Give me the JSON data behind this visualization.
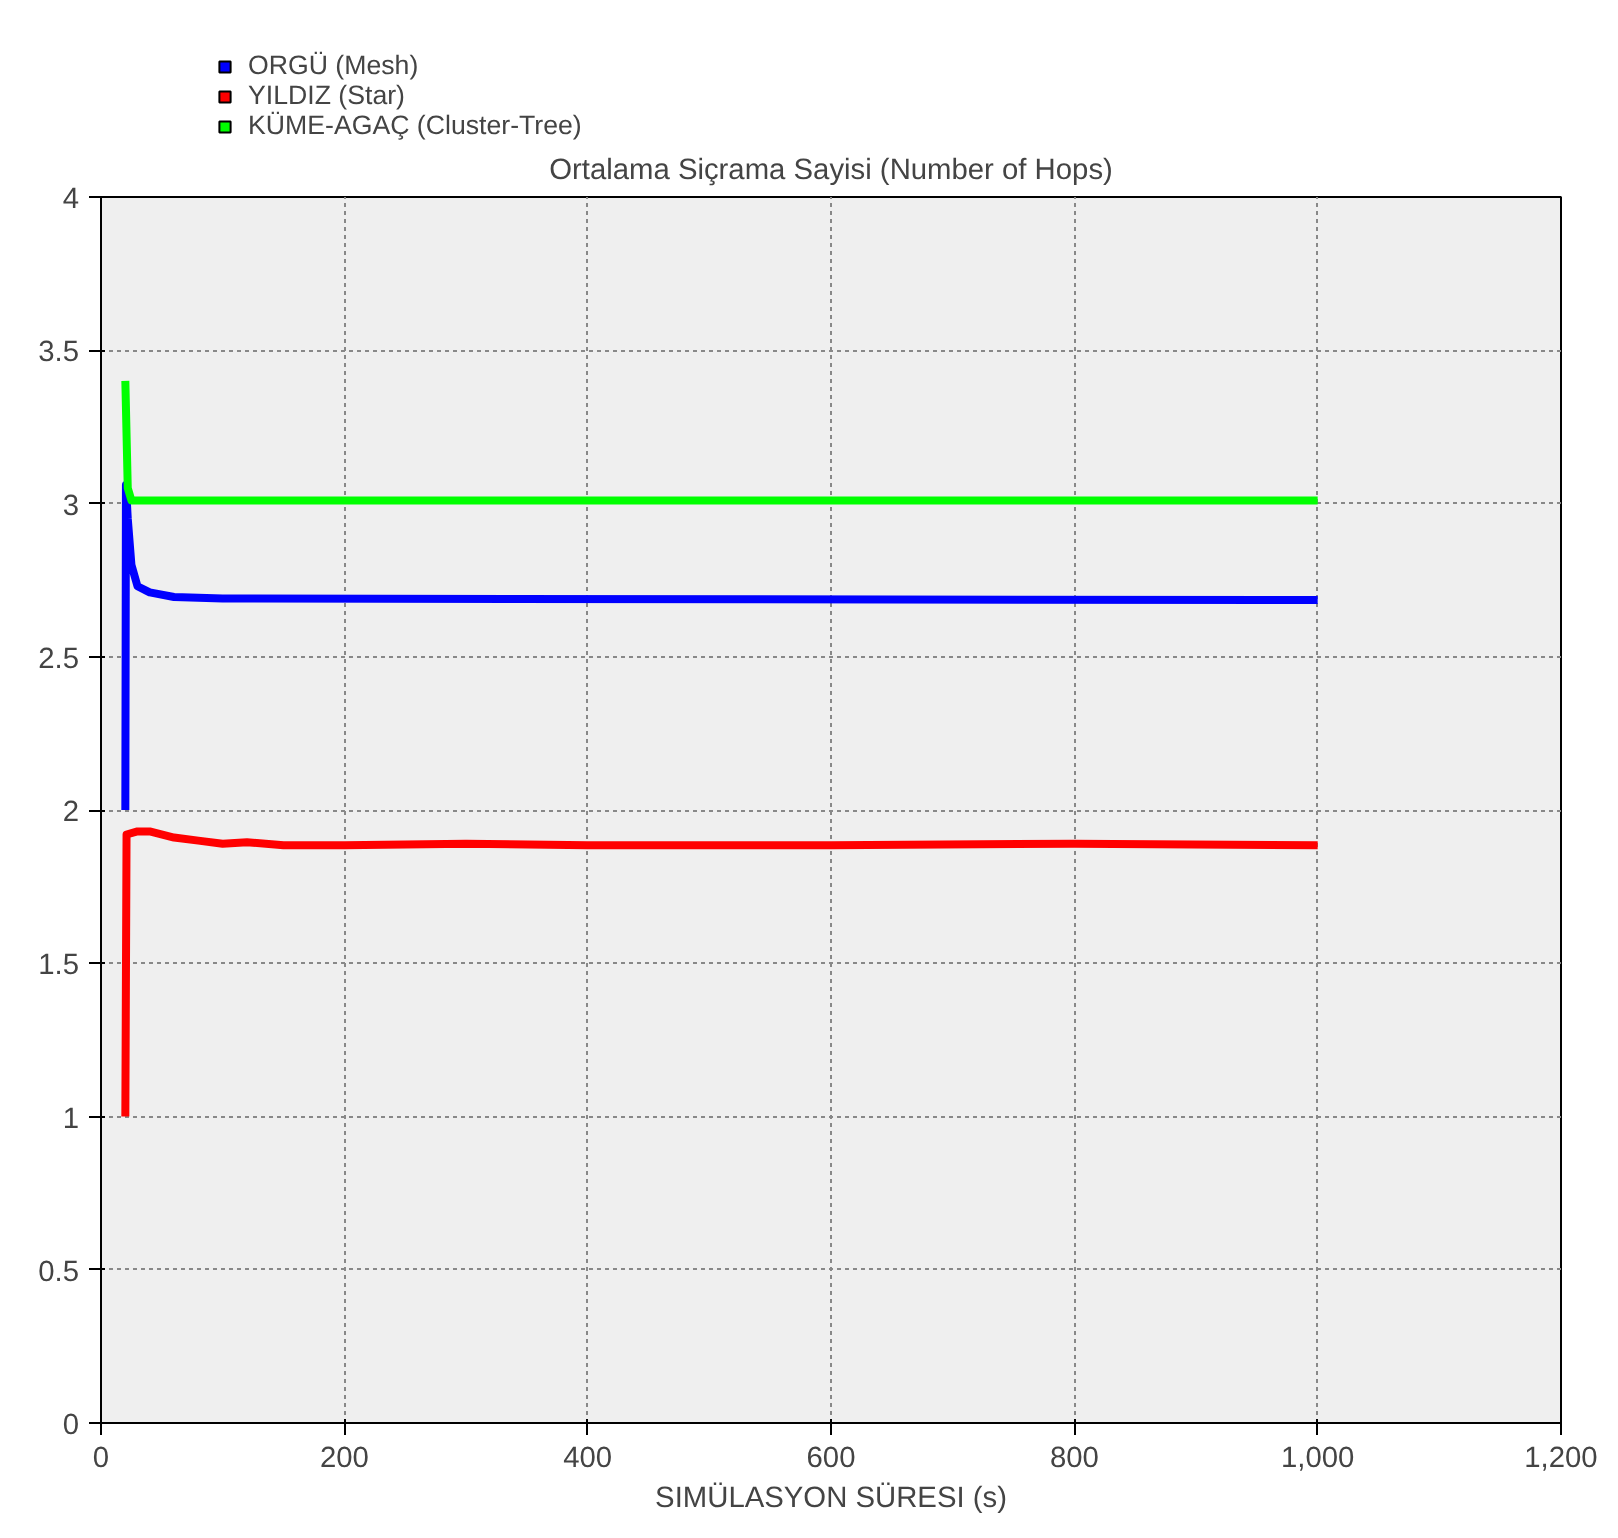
{
  "chart_data": {
    "type": "line",
    "title": "Ortalama Siçrama Sayisi (Number of Hops)",
    "xlabel": "SIMÜLASYON SÜRESI (s)",
    "xlim": [
      0,
      1200
    ],
    "xticks": [
      0,
      200,
      400,
      600,
      800,
      {
        "value": 1000,
        "label": "1,000"
      },
      {
        "value": 1200,
        "label": "1,200"
      }
    ],
    "ylim": [
      0,
      4
    ],
    "yticks": [
      0,
      0.5,
      1,
      1.5,
      2,
      2.5,
      3,
      3.5,
      4
    ],
    "grid": true,
    "legend": "top left",
    "line_style": "solid",
    "marker": "none",
    "series": [
      {
        "name": "ORGÜ (Mesh)",
        "color": "#0000ff",
        "x": [
          20,
          20.5,
          22,
          25,
          30,
          40,
          60,
          100,
          1000
        ],
        "values": [
          2.0,
          3.06,
          2.95,
          2.8,
          2.73,
          2.71,
          2.695,
          2.69,
          2.685
        ]
      },
      {
        "name": "YILDIZ (Star)",
        "color": "#ff0000",
        "x": [
          20,
          21,
          30,
          40,
          60,
          80,
          100,
          120,
          150,
          200,
          300,
          400,
          600,
          800,
          1000
        ],
        "values": [
          1.0,
          1.92,
          1.93,
          1.93,
          1.91,
          1.9,
          1.89,
          1.895,
          1.885,
          1.885,
          1.89,
          1.885,
          1.885,
          1.89,
          1.885
        ]
      },
      {
        "name": "KÜME-AGAÇ (Cluster-Tree)",
        "color": "#00ff00",
        "x": [
          20,
          22,
          25,
          100,
          1000
        ],
        "values": [
          3.4,
          3.05,
          3.01,
          3.01,
          3.01
        ]
      }
    ]
  }
}
